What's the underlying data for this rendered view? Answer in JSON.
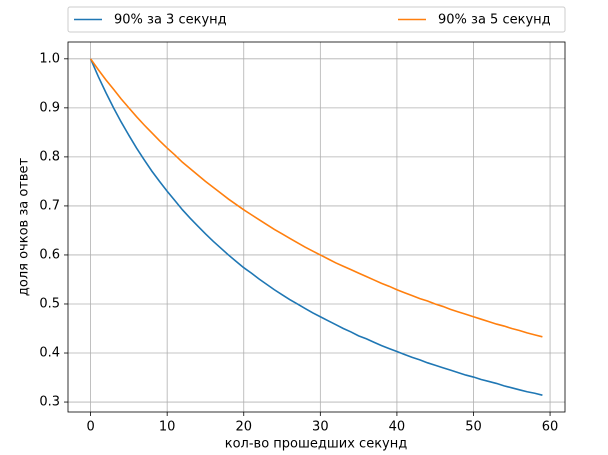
{
  "chart_data": {
    "type": "line",
    "xlabel": "кол-во прошедших секунд",
    "ylabel": "доля очков за ответ",
    "x": [
      0,
      1,
      2,
      3,
      4,
      5,
      6,
      7,
      8,
      9,
      10,
      11,
      12,
      13,
      14,
      15,
      16,
      17,
      18,
      19,
      20,
      21,
      22,
      23,
      24,
      25,
      26,
      27,
      28,
      29,
      30,
      31,
      32,
      33,
      34,
      35,
      36,
      37,
      38,
      39,
      40,
      41,
      42,
      43,
      44,
      45,
      46,
      47,
      48,
      49,
      50,
      51,
      52,
      53,
      54,
      55,
      56,
      57,
      58,
      59
    ],
    "series": [
      {
        "name": "90% за 3 секунд",
        "color": "#1f77b4",
        "values": [
          1.0,
          0.964,
          0.931,
          0.9,
          0.871,
          0.844,
          0.818,
          0.794,
          0.771,
          0.75,
          0.73,
          0.711,
          0.692,
          0.675,
          0.659,
          0.643,
          0.628,
          0.614,
          0.6,
          0.587,
          0.574,
          0.563,
          0.551,
          0.54,
          0.529,
          0.519,
          0.509,
          0.5,
          0.491,
          0.482,
          0.474,
          0.466,
          0.458,
          0.45,
          0.443,
          0.435,
          0.429,
          0.422,
          0.415,
          0.409,
          0.403,
          0.397,
          0.391,
          0.386,
          0.38,
          0.375,
          0.37,
          0.365,
          0.36,
          0.355,
          0.351,
          0.346,
          0.342,
          0.338,
          0.333,
          0.329,
          0.325,
          0.321,
          0.318,
          0.314
        ]
      },
      {
        "name": "90% за 5 секунд",
        "color": "#ff7f0e",
        "values": [
          1.0,
          0.978,
          0.957,
          0.938,
          0.918,
          0.9,
          0.882,
          0.865,
          0.849,
          0.833,
          0.818,
          0.804,
          0.789,
          0.776,
          0.763,
          0.75,
          0.738,
          0.726,
          0.714,
          0.703,
          0.692,
          0.682,
          0.672,
          0.662,
          0.652,
          0.643,
          0.634,
          0.625,
          0.616,
          0.608,
          0.6,
          0.592,
          0.584,
          0.577,
          0.57,
          0.563,
          0.556,
          0.549,
          0.542,
          0.536,
          0.529,
          0.523,
          0.517,
          0.511,
          0.506,
          0.5,
          0.495,
          0.489,
          0.484,
          0.479,
          0.474,
          0.469,
          0.464,
          0.459,
          0.455,
          0.45,
          0.446,
          0.441,
          0.437,
          0.433
        ]
      }
    ],
    "xlim": [
      -2.95,
      61.95
    ],
    "ylim": [
      0.2797,
      1.0343
    ],
    "xticks": [
      0,
      10,
      20,
      30,
      40,
      50,
      60
    ],
    "yticks": [
      0.3,
      0.4,
      0.5,
      0.6,
      0.7,
      0.8,
      0.9,
      {
        "value": 1,
        "label": "1.0"
      }
    ],
    "grid": true
  }
}
